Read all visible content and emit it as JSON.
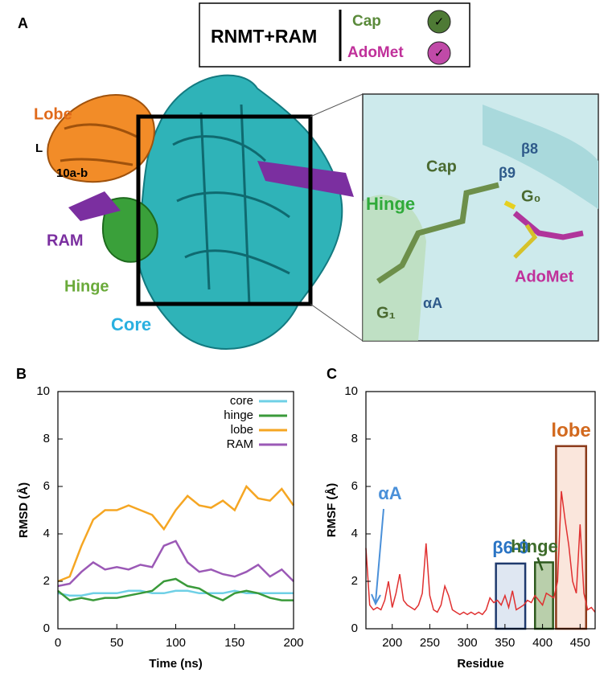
{
  "panel_a": {
    "label": "A",
    "legend": {
      "title": "RNMT+RAM",
      "items": [
        {
          "name": "Cap",
          "check": "✓"
        },
        {
          "name": "AdoMet",
          "check": "✓"
        }
      ]
    },
    "structure_labels": [
      "Lobe",
      "L",
      "10a-b",
      "RAM",
      "Hinge",
      "Core"
    ],
    "inset_labels": [
      "β8",
      "β9",
      "Cap",
      "G₀",
      "Hinge",
      "αA",
      "G₁",
      "AdoMet"
    ]
  },
  "chart_data": [
    {
      "type": "line",
      "label": "B",
      "xlabel": "Time (ns)",
      "ylabel": "RMSD (Å)",
      "x": [
        0,
        10,
        20,
        30,
        40,
        50,
        60,
        70,
        80,
        90,
        100,
        110,
        120,
        130,
        140,
        150,
        160,
        170,
        180,
        190,
        200
      ],
      "xlim": [
        0,
        200
      ],
      "ylim": [
        0,
        10
      ],
      "xticks": [
        0,
        50,
        100,
        150,
        200
      ],
      "yticks": [
        0,
        2,
        4,
        6,
        8,
        10
      ],
      "legend": "upper right",
      "series": [
        {
          "name": "core",
          "color": "#6fd0e6",
          "values": [
            1.5,
            1.4,
            1.4,
            1.5,
            1.5,
            1.5,
            1.6,
            1.6,
            1.5,
            1.5,
            1.6,
            1.6,
            1.5,
            1.5,
            1.5,
            1.6,
            1.5,
            1.5,
            1.5,
            1.5,
            1.5
          ]
        },
        {
          "name": "hinge",
          "color": "#3a9a3a",
          "values": [
            1.6,
            1.2,
            1.3,
            1.2,
            1.3,
            1.3,
            1.4,
            1.5,
            1.6,
            2.0,
            2.1,
            1.8,
            1.7,
            1.4,
            1.2,
            1.5,
            1.6,
            1.5,
            1.3,
            1.2,
            1.2
          ]
        },
        {
          "name": "lobe",
          "color": "#f5a623",
          "values": [
            2.0,
            2.2,
            3.5,
            4.6,
            5.0,
            5.0,
            5.2,
            5.0,
            4.8,
            4.2,
            5.0,
            5.6,
            5.2,
            5.1,
            5.4,
            5.0,
            6.0,
            5.5,
            5.4,
            5.9,
            5.2
          ]
        },
        {
          "name": "RAM",
          "color": "#9b59b6",
          "values": [
            1.8,
            1.9,
            2.4,
            2.8,
            2.5,
            2.6,
            2.5,
            2.7,
            2.6,
            3.5,
            3.7,
            2.8,
            2.4,
            2.5,
            2.3,
            2.2,
            2.4,
            2.7,
            2.2,
            2.5,
            2.0
          ]
        }
      ]
    },
    {
      "type": "line",
      "label": "C",
      "xlabel": "Residue",
      "ylabel": "RMSF (Å)",
      "color": "#e03030",
      "x": [
        165,
        170,
        175,
        180,
        185,
        190,
        195,
        200,
        205,
        210,
        215,
        220,
        225,
        230,
        235,
        240,
        245,
        250,
        255,
        260,
        265,
        270,
        275,
        280,
        285,
        290,
        295,
        300,
        305,
        310,
        315,
        320,
        325,
        330,
        335,
        340,
        345,
        350,
        355,
        360,
        365,
        370,
        375,
        380,
        385,
        390,
        395,
        400,
        405,
        410,
        415,
        420,
        425,
        430,
        435,
        440,
        445,
        450,
        455,
        460,
        465,
        470
      ],
      "values": [
        3.4,
        1.0,
        0.8,
        0.9,
        0.8,
        1.2,
        2.0,
        0.9,
        1.5,
        2.3,
        1.2,
        1.0,
        0.9,
        0.8,
        1.0,
        1.5,
        3.6,
        1.4,
        0.8,
        0.7,
        1.0,
        1.8,
        1.4,
        0.8,
        0.7,
        0.6,
        0.7,
        0.6,
        0.7,
        0.6,
        0.7,
        0.6,
        0.8,
        1.3,
        1.1,
        1.2,
        1.0,
        1.4,
        0.9,
        1.6,
        0.8,
        0.9,
        1.0,
        1.2,
        1.1,
        1.4,
        1.2,
        1.0,
        1.5,
        1.4,
        1.3,
        2.0,
        5.8,
        4.6,
        3.5,
        2.0,
        1.5,
        4.4,
        1.5,
        0.8,
        0.9,
        0.7
      ],
      "xlim": [
        165,
        470
      ],
      "ylim": [
        0,
        10
      ],
      "xticks": [
        200,
        250,
        300,
        350,
        400,
        450
      ],
      "yticks": [
        0,
        2,
        4,
        6,
        8,
        10
      ],
      "annotation": {
        "label": "αA",
        "color": "#4a90d9"
      },
      "regions": [
        {
          "label": "β6-9",
          "x": [
            338,
            377
          ],
          "top": 2.75,
          "color": "#1f3a6e",
          "fill": "#c5d3e8",
          "text_color": "#2a74c4"
        },
        {
          "label": "hinge",
          "x": [
            390,
            414
          ],
          "top": 2.8,
          "color": "#2e5a1e",
          "fill": "#7fa866",
          "text_color": "#3d6b2a"
        },
        {
          "label": "lobe",
          "x": [
            418,
            458
          ],
          "top": 7.7,
          "color": "#8b3a1a",
          "fill": "#f5d2c0",
          "text_color": "#d2691e"
        }
      ]
    }
  ]
}
